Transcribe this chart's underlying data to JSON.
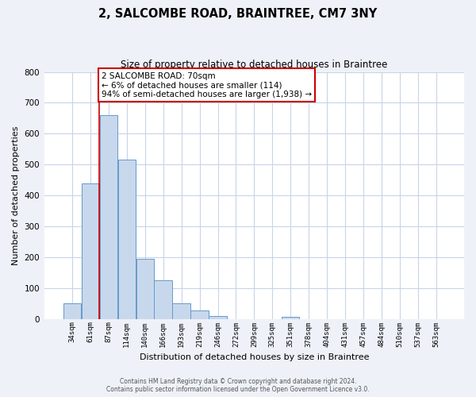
{
  "title": "2, SALCOMBE ROAD, BRAINTREE, CM7 3NY",
  "subtitle": "Size of property relative to detached houses in Braintree",
  "xlabel": "Distribution of detached houses by size in Braintree",
  "ylabel": "Number of detached properties",
  "bar_labels": [
    "34sqm",
    "61sqm",
    "87sqm",
    "114sqm",
    "140sqm",
    "166sqm",
    "193sqm",
    "219sqm",
    "246sqm",
    "272sqm",
    "299sqm",
    "325sqm",
    "351sqm",
    "378sqm",
    "404sqm",
    "431sqm",
    "457sqm",
    "484sqm",
    "510sqm",
    "537sqm",
    "563sqm"
  ],
  "bar_values": [
    50,
    440,
    660,
    515,
    195,
    125,
    50,
    27,
    10,
    0,
    0,
    0,
    8,
    0,
    0,
    0,
    0,
    0,
    0,
    0,
    0
  ],
  "bar_color": "#c8d8ec",
  "bar_edgecolor": "#6699cc",
  "ylim": [
    0,
    800
  ],
  "yticks": [
    0,
    100,
    200,
    300,
    400,
    500,
    600,
    700,
    800
  ],
  "vline_x_index": 1.5,
  "vline_color": "#cc0000",
  "annotation_text": "2 SALCOMBE ROAD: 70sqm\n← 6% of detached houses are smaller (114)\n94% of semi-detached houses are larger (1,938) →",
  "annotation_box_edgecolor": "#cc0000",
  "annotation_box_facecolor": "#ffffff",
  "figure_facecolor": "#eef2f8",
  "plot_facecolor": "#ffffff",
  "grid_color": "#c8d4e8",
  "footer_line1": "Contains HM Land Registry data © Crown copyright and database right 2024.",
  "footer_line2": "Contains public sector information licensed under the Open Government Licence v3.0."
}
